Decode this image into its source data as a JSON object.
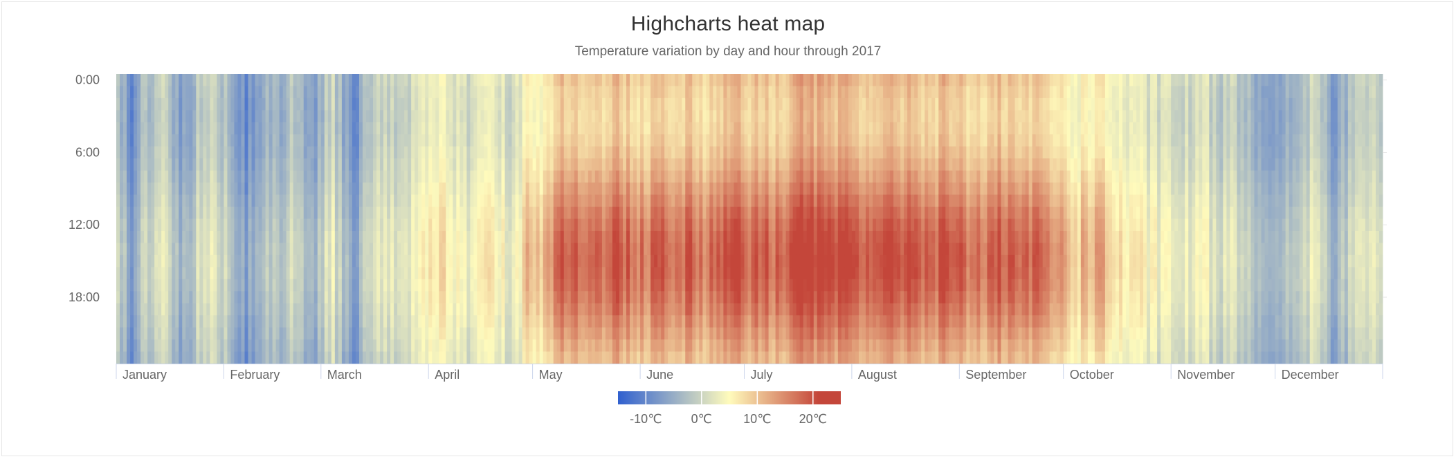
{
  "chart_data": {
    "type": "heatmap",
    "title": "Highcharts heat map",
    "subtitle": "Temperature variation by day and hour through 2017",
    "x_axis": {
      "type": "datetime",
      "range": [
        "2017-01-01",
        "2017-12-31"
      ],
      "tick_labels": [
        "January",
        "February",
        "March",
        "April",
        "May",
        "June",
        "July",
        "August",
        "September",
        "October",
        "November",
        "December"
      ],
      "ticks": [
        "2017-01-01",
        "2017-02-01",
        "2017-03-01",
        "2017-04-01",
        "2017-05-01",
        "2017-06-01",
        "2017-07-01",
        "2017-08-01",
        "2017-09-01",
        "2017-10-01",
        "2017-11-01",
        "2017-12-01"
      ]
    },
    "y_axis": {
      "min": 0,
      "max": 23,
      "reversed": true,
      "unit": "hour",
      "tick_labels": [
        "0:00",
        "6:00",
        "12:00",
        "18:00"
      ],
      "ticks": [
        0,
        6,
        12,
        18
      ]
    },
    "color_axis": {
      "min": -15,
      "max": 25,
      "stops": [
        {
          "pos": 0.0,
          "color": "#3060cf"
        },
        {
          "pos": 0.5,
          "color": "#fffbbc"
        },
        {
          "pos": 0.9,
          "color": "#c4463a"
        },
        {
          "pos": 1.0,
          "color": "#c4463a"
        }
      ],
      "legend_labels": [
        "-10℃",
        "0℃",
        "10℃",
        "20℃"
      ],
      "legend_values": [
        -10,
        0,
        10,
        20
      ],
      "legend_placement": "bottom-center"
    },
    "daily_mean_temperature": [
      {
        "date": "2017-01-01",
        "temp": 0
      },
      {
        "date": "2017-01-05",
        "temp": -9
      },
      {
        "date": "2017-01-08",
        "temp": -3
      },
      {
        "date": "2017-01-12",
        "temp": -1
      },
      {
        "date": "2017-01-15",
        "temp": 2
      },
      {
        "date": "2017-01-18",
        "temp": -4
      },
      {
        "date": "2017-01-21",
        "temp": -6
      },
      {
        "date": "2017-01-25",
        "temp": 1
      },
      {
        "date": "2017-01-28",
        "temp": 3
      },
      {
        "date": "2017-02-01",
        "temp": -1
      },
      {
        "date": "2017-02-04",
        "temp": -5
      },
      {
        "date": "2017-02-07",
        "temp": -8
      },
      {
        "date": "2017-02-10",
        "temp": -6
      },
      {
        "date": "2017-02-13",
        "temp": -2
      },
      {
        "date": "2017-02-16",
        "temp": -4
      },
      {
        "date": "2017-02-20",
        "temp": 0
      },
      {
        "date": "2017-02-23",
        "temp": -2
      },
      {
        "date": "2017-02-26",
        "temp": -7
      },
      {
        "date": "2017-03-01",
        "temp": -2
      },
      {
        "date": "2017-03-04",
        "temp": 1
      },
      {
        "date": "2017-03-07",
        "temp": -3
      },
      {
        "date": "2017-03-10",
        "temp": -9
      },
      {
        "date": "2017-03-13",
        "temp": -2
      },
      {
        "date": "2017-03-17",
        "temp": 1
      },
      {
        "date": "2017-03-21",
        "temp": 2
      },
      {
        "date": "2017-03-25",
        "temp": -1
      },
      {
        "date": "2017-03-29",
        "temp": 4
      },
      {
        "date": "2017-04-01",
        "temp": 5
      },
      {
        "date": "2017-04-05",
        "temp": 7
      },
      {
        "date": "2017-04-08",
        "temp": 3
      },
      {
        "date": "2017-04-12",
        "temp": 1
      },
      {
        "date": "2017-04-16",
        "temp": 6
      },
      {
        "date": "2017-04-20",
        "temp": 4
      },
      {
        "date": "2017-04-25",
        "temp": 2
      },
      {
        "date": "2017-04-29",
        "temp": 8
      },
      {
        "date": "2017-05-03",
        "temp": 6
      },
      {
        "date": "2017-05-06",
        "temp": 11
      },
      {
        "date": "2017-05-09",
        "temp": 15
      },
      {
        "date": "2017-05-13",
        "temp": 13
      },
      {
        "date": "2017-05-17",
        "temp": 14
      },
      {
        "date": "2017-05-21",
        "temp": 12
      },
      {
        "date": "2017-05-25",
        "temp": 15
      },
      {
        "date": "2017-05-29",
        "temp": 13
      },
      {
        "date": "2017-06-02",
        "temp": 12
      },
      {
        "date": "2017-06-06",
        "temp": 15
      },
      {
        "date": "2017-06-10",
        "temp": 13
      },
      {
        "date": "2017-06-15",
        "temp": 14
      },
      {
        "date": "2017-06-20",
        "temp": 12
      },
      {
        "date": "2017-06-24",
        "temp": 14
      },
      {
        "date": "2017-06-28",
        "temp": 17
      },
      {
        "date": "2017-07-02",
        "temp": 13
      },
      {
        "date": "2017-07-06",
        "temp": 14
      },
      {
        "date": "2017-07-10",
        "temp": 13
      },
      {
        "date": "2017-07-14",
        "temp": 15
      },
      {
        "date": "2017-07-18",
        "temp": 18
      },
      {
        "date": "2017-07-22",
        "temp": 16
      },
      {
        "date": "2017-07-26",
        "temp": 14
      },
      {
        "date": "2017-07-30",
        "temp": 16
      },
      {
        "date": "2017-08-03",
        "temp": 14
      },
      {
        "date": "2017-08-08",
        "temp": 15
      },
      {
        "date": "2017-08-13",
        "temp": 14
      },
      {
        "date": "2017-08-18",
        "temp": 16
      },
      {
        "date": "2017-08-23",
        "temp": 13
      },
      {
        "date": "2017-08-28",
        "temp": 15
      },
      {
        "date": "2017-09-02",
        "temp": 13
      },
      {
        "date": "2017-09-07",
        "temp": 12
      },
      {
        "date": "2017-09-12",
        "temp": 14
      },
      {
        "date": "2017-09-17",
        "temp": 12
      },
      {
        "date": "2017-09-22",
        "temp": 13
      },
      {
        "date": "2017-09-27",
        "temp": 11
      },
      {
        "date": "2017-10-01",
        "temp": 9
      },
      {
        "date": "2017-10-05",
        "temp": 7
      },
      {
        "date": "2017-10-10",
        "temp": 10
      },
      {
        "date": "2017-10-15",
        "temp": 6
      },
      {
        "date": "2017-10-20",
        "temp": 4
      },
      {
        "date": "2017-10-25",
        "temp": 3
      },
      {
        "date": "2017-10-30",
        "temp": 2
      },
      {
        "date": "2017-11-04",
        "temp": 1
      },
      {
        "date": "2017-11-09",
        "temp": 3
      },
      {
        "date": "2017-11-14",
        "temp": 0
      },
      {
        "date": "2017-11-18",
        "temp": 2
      },
      {
        "date": "2017-11-22",
        "temp": -1
      },
      {
        "date": "2017-11-26",
        "temp": -3
      },
      {
        "date": "2017-11-30",
        "temp": -7
      },
      {
        "date": "2017-12-03",
        "temp": -5
      },
      {
        "date": "2017-12-07",
        "temp": -2
      },
      {
        "date": "2017-12-11",
        "temp": 1
      },
      {
        "date": "2017-12-15",
        "temp": -2
      },
      {
        "date": "2017-12-18",
        "temp": -7
      },
      {
        "date": "2017-12-22",
        "temp": -1
      },
      {
        "date": "2017-12-26",
        "temp": 2
      },
      {
        "date": "2017-12-31",
        "temp": -1
      }
    ]
  }
}
